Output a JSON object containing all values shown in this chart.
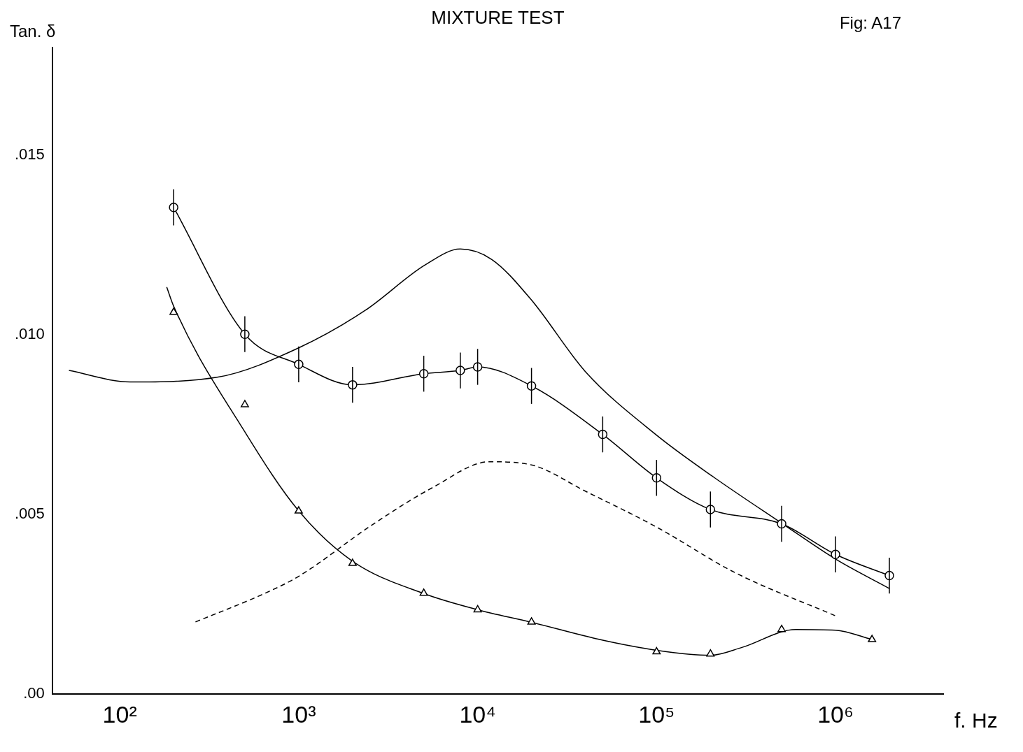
{
  "chart_data": {
    "type": "line",
    "title": "MIXTURE TEST",
    "xlabel": "f. Hz",
    "ylabel": "Tan. δ",
    "annotations": [
      "Fig: A17"
    ],
    "log": "x",
    "grid": false,
    "legend": false,
    "xlim": [
      42,
      4000000
    ],
    "xticks": [
      {
        "value": 100,
        "label": "10²"
      },
      {
        "value": 1000,
        "label": "10³"
      },
      {
        "value": 10000,
        "label": "10⁴"
      },
      {
        "value": 100000,
        "label": "10⁵"
      },
      {
        "value": 1000000,
        "label": "10⁶"
      }
    ],
    "ylim": [
      0,
      0.018
    ],
    "yticks": [
      {
        "value": 0,
        "label": ".00"
      },
      {
        "value": 0.005,
        "label": ".005"
      },
      {
        "value": 0.01,
        "label": ".010"
      },
      {
        "value": 0.015,
        "label": ".015"
      }
    ],
    "series": [
      {
        "type": "line",
        "marker": "circle",
        "line_style": "solid",
        "color": "#000000",
        "x": [
          200,
          500,
          1000,
          2000,
          5000,
          8000,
          10000,
          20000,
          50000,
          100000,
          200000,
          500000,
          1000000,
          2000000
        ],
        "values": [
          0.01355,
          0.01002,
          0.00918,
          0.00861,
          0.00892,
          0.00901,
          0.00911,
          0.00858,
          0.00723,
          0.00602,
          0.00514,
          0.00474,
          0.00389,
          0.0033
        ],
        "errors": [
          0.0005,
          0.0005,
          0.0005,
          0.0005,
          0.0005,
          0.0005,
          0.0005,
          0.0005,
          0.0005,
          0.0005,
          0.0005,
          0.0005,
          0.0005,
          0.0005
        ]
      },
      {
        "type": "scatter",
        "marker": "triangle",
        "color": "#000000",
        "x": [
          200,
          500,
          1000,
          2000,
          5000,
          10000,
          20000,
          100000,
          200000,
          500000,
          1600000
        ],
        "values": [
          0.01063,
          0.00806,
          0.0051,
          0.00364,
          0.00281,
          0.00235,
          0.00201,
          0.00118,
          0.00112,
          0.0018,
          0.00152
        ]
      },
      {
        "type": "line",
        "marker": "none",
        "line_style": "solid",
        "color": "#000000",
        "x": [
          183,
          200,
          500,
          1000,
          2000,
          5000,
          10000,
          20000,
          50000,
          100000,
          200000,
          300000,
          600000,
          1000000,
          1600000
        ],
        "values": [
          0.01133,
          0.0108,
          0.0073,
          0.0051,
          0.0037,
          0.0028,
          0.00235,
          0.002,
          0.0015,
          0.00122,
          0.00108,
          0.0013,
          0.0018,
          0.00178,
          0.00152
        ]
      },
      {
        "type": "line",
        "marker": "none",
        "line_style": "solid",
        "color": "#000000",
        "x": [
          52,
          114,
          350,
          1000,
          2350,
          5100,
          8000,
          12000,
          20000,
          40000,
          100000,
          210000,
          500000,
          1000000,
          2000000
        ],
        "values": [
          0.00901,
          0.00869,
          0.00882,
          0.00964,
          0.01068,
          0.01195,
          0.01239,
          0.0121,
          0.01097,
          0.00898,
          0.00721,
          0.00603,
          0.00476,
          0.00376,
          0.00294
        ]
      },
      {
        "type": "line",
        "marker": "none",
        "line_style": "dashed",
        "color": "#000000",
        "x": [
          265,
          650,
          1000,
          2570,
          5600,
          11700,
          20000,
          40000,
          100000,
          275000,
          1000000
        ],
        "values": [
          0.00201,
          0.00281,
          0.00328,
          0.00471,
          0.00575,
          0.00647,
          0.00638,
          0.00565,
          0.00465,
          0.00338,
          0.00218
        ]
      }
    ]
  }
}
